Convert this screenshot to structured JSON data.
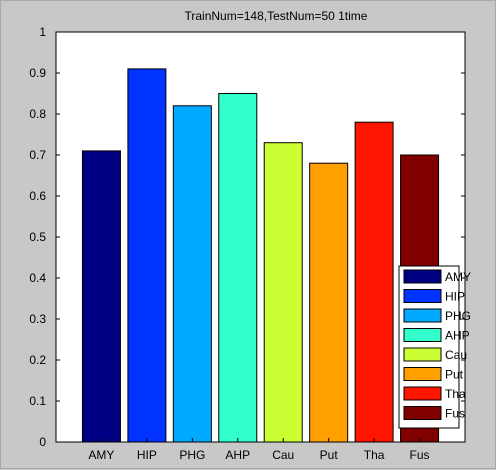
{
  "chart_data": {
    "type": "bar",
    "title": "TrainNum=148,TestNum=50 1time",
    "xlabel": "",
    "ylabel": "",
    "categories": [
      "AMY",
      "HIP",
      "PHG",
      "AHP",
      "Cau",
      "Put",
      "Tha",
      "Fus"
    ],
    "values": [
      0.71,
      0.91,
      0.82,
      0.85,
      0.73,
      0.68,
      0.78,
      0.7
    ],
    "colors": [
      "#000083",
      "#0033ff",
      "#00aaff",
      "#33ffcc",
      "#ccff33",
      "#ffa000",
      "#ff1500",
      "#800000"
    ],
    "ylim": [
      0,
      1
    ],
    "yticks": [
      "0",
      "0.1",
      "0.2",
      "0.3",
      "0.4",
      "0.5",
      "0.6",
      "0.7",
      "0.8",
      "0.9",
      "1"
    ],
    "grid": false,
    "legend": {
      "placement": "bottom-right",
      "entries": [
        "AMY",
        "HIP",
        "PHG",
        "AHP",
        "Cau",
        "Put",
        "Tha",
        "Fus"
      ]
    }
  }
}
